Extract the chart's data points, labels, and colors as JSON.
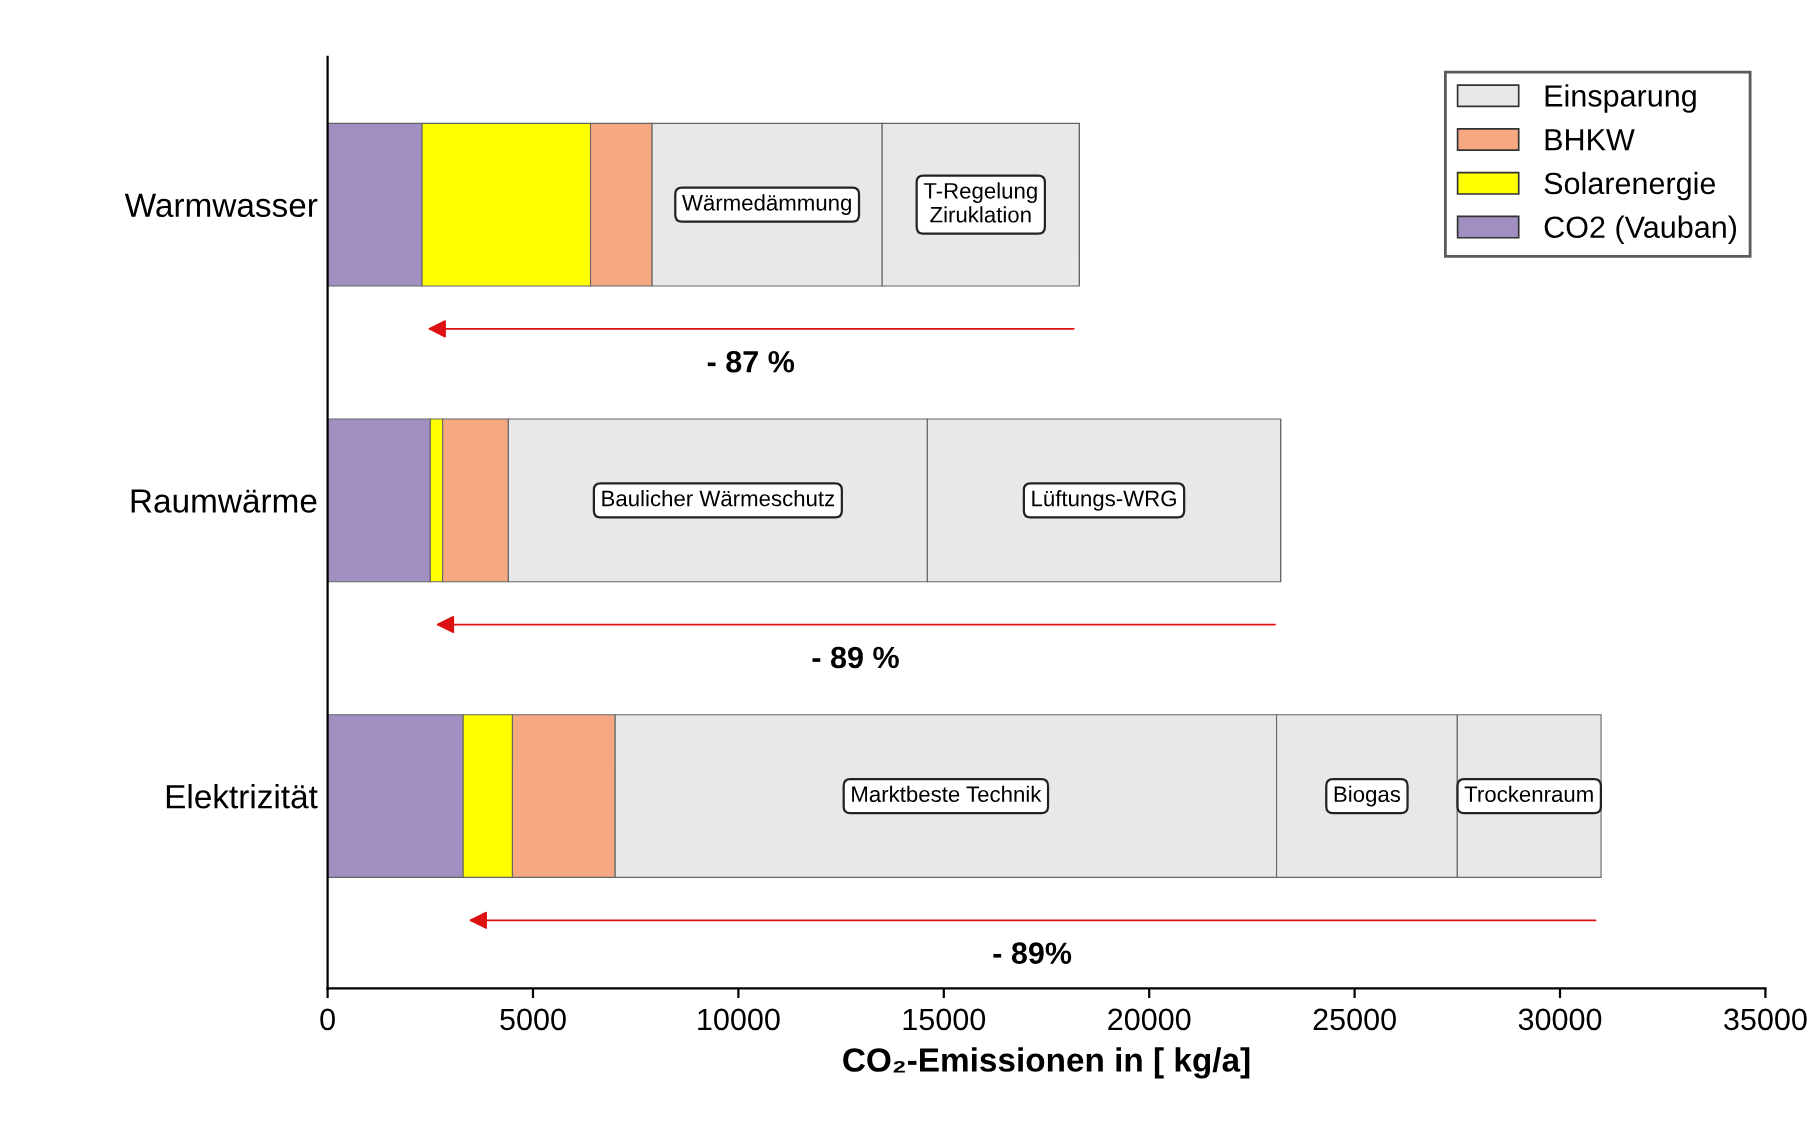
{
  "chart_data": {
    "type": "bar",
    "orientation": "horizontal",
    "stacked": true,
    "categories": [
      "Warmwasser",
      "Raumwärme",
      "Elektrizität"
    ],
    "series": [
      {
        "name": "CO2 (Vauban)",
        "color": "#a08fc0",
        "values": [
          2300,
          2500,
          3300
        ]
      },
      {
        "name": "Solarenergie",
        "color": "#ffff00",
        "values": [
          4100,
          300,
          1200
        ]
      },
      {
        "name": "BHKW",
        "color": "#f5a882",
        "values": [
          1500,
          1600,
          2500
        ]
      },
      {
        "name": "Einsparung",
        "color": "#e8e8e8",
        "values": [
          5600,
          10200,
          16100
        ]
      },
      {
        "color": "#e8e8e8",
        "values": [
          4800,
          8600,
          4400
        ]
      },
      {
        "color": "#e8e8e8",
        "values": [
          null,
          null,
          3500
        ]
      }
    ],
    "xlim": [
      0,
      35000
    ],
    "xticks": [
      0,
      5000,
      10000,
      15000,
      20000,
      25000,
      30000,
      35000
    ],
    "xlabel": "CO₂-Emissionen in [ kg/a]",
    "annotations": [
      "Wärmedämmung",
      "T-Regelung\nZiruklation",
      "Baulicher Wärmeschutz",
      "Lüftungs-WRG",
      "Marktbeste Technik",
      "Biogas",
      "Trockenraum",
      "- 87 %",
      "- 89 %",
      "- 89%"
    ],
    "legend": "top right",
    "grid": false
  }
}
